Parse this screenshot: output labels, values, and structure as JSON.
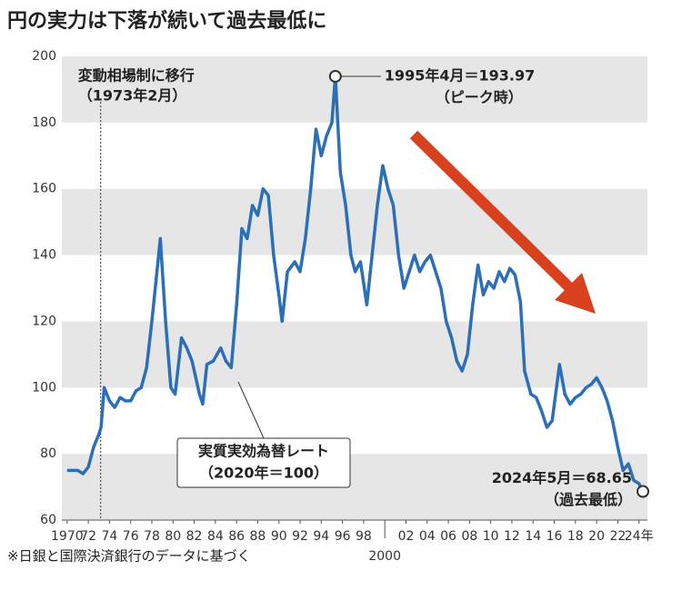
{
  "chart_data": {
    "type": "line",
    "title": "円の実力は下落が続いて過去最低に",
    "footnote": "※日銀と国際決済銀行のデータに基づく",
    "series": [
      {
        "name": "実質実効為替レート（2020年＝100）",
        "color": "#2a6fb8",
        "x": [
          1970,
          1971,
          1971.5,
          1972,
          1972.5,
          1973,
          1973.2,
          1973.5,
          1974,
          1974.5,
          1975,
          1975.5,
          1976,
          1976.5,
          1977,
          1977.5,
          1978,
          1978.8,
          1979.3,
          1979.8,
          1980.2,
          1980.8,
          1981.3,
          1981.8,
          1982.5,
          1982.8,
          1983.2,
          1983.8,
          1984.5,
          1985,
          1985.5,
          1986,
          1986.5,
          1987,
          1987.5,
          1988,
          1988.5,
          1989,
          1989.5,
          1990,
          1990.3,
          1990.8,
          1991.5,
          1992,
          1992.5,
          1993,
          1993.5,
          1994,
          1994.5,
          1995,
          1995.33,
          1995.8,
          1996.3,
          1996.8,
          1997.2,
          1997.7,
          1998.3,
          1998.8,
          1999.3,
          1999.8,
          2000.3,
          2000.8,
          2001.3,
          2001.8,
          2002.3,
          2002.8,
          2003.3,
          2003.8,
          2004.3,
          2004.8,
          2005.3,
          2005.8,
          2006.3,
          2006.8,
          2007.3,
          2007.8,
          2008.3,
          2008.8,
          2009.3,
          2009.8,
          2010.3,
          2010.8,
          2011.3,
          2011.8,
          2012.3,
          2012.8,
          2013.2,
          2013.8,
          2014.3,
          2014.8,
          2015.3,
          2015.8,
          2016.5,
          2017,
          2017.5,
          2018,
          2018.5,
          2019,
          2019.5,
          2020,
          2020.5,
          2021,
          2021.5,
          2022,
          2022.5,
          2023,
          2023.5,
          2024,
          2024.37
        ],
        "values": [
          75,
          75,
          74,
          76,
          82,
          86,
          88,
          100,
          96,
          94,
          97,
          96,
          96,
          99,
          100,
          106,
          120,
          145,
          120,
          100,
          98,
          115,
          112,
          108,
          98,
          95,
          107,
          108,
          112,
          108,
          106,
          125,
          148,
          145,
          155,
          152,
          160,
          158,
          140,
          128,
          120,
          135,
          138,
          135,
          145,
          160,
          178,
          170,
          176,
          180,
          193.97,
          165,
          155,
          140,
          135,
          138,
          125,
          140,
          155,
          167,
          160,
          155,
          140,
          130,
          135,
          140,
          135,
          138,
          140,
          135,
          130,
          120,
          115,
          108,
          105,
          110,
          125,
          137,
          128,
          132,
          130,
          135,
          132,
          136,
          134,
          126,
          105,
          98,
          97,
          93,
          88,
          90,
          107,
          98,
          95,
          97,
          98,
          100,
          101,
          103,
          100,
          96,
          90,
          82,
          75,
          77,
          72,
          71,
          68.65
        ]
      }
    ],
    "xlim": [
      1969.5,
      2024.8
    ],
    "ylim": [
      60,
      200
    ],
    "yticks": [
      60,
      80,
      100,
      120,
      140,
      160,
      180,
      200
    ],
    "xticks": [
      1970,
      {
        "value": 1972,
        "label": "72"
      },
      {
        "value": 1974,
        "label": "74"
      },
      {
        "value": 1976,
        "label": "76"
      },
      {
        "value": 1978,
        "label": "78"
      },
      {
        "value": 1980,
        "label": "80"
      },
      {
        "value": 1982,
        "label": "82"
      },
      {
        "value": 1984,
        "label": "84"
      },
      {
        "value": 1986,
        "label": "86"
      },
      {
        "value": 1988,
        "label": "88"
      },
      {
        "value": 1990,
        "label": "90"
      },
      {
        "value": 1992,
        "label": "92"
      },
      {
        "value": 1994,
        "label": "94"
      },
      {
        "value": 1996,
        "label": "96"
      },
      {
        "value": 1998,
        "label": "98"
      },
      {
        "value": 2002,
        "label": "02"
      },
      {
        "value": 2004,
        "label": "04"
      },
      {
        "value": 2006,
        "label": "06"
      },
      {
        "value": 2008,
        "label": "08"
      },
      {
        "value": 2010,
        "label": "10"
      },
      {
        "value": 2012,
        "label": "12"
      },
      {
        "value": 2014,
        "label": "14"
      },
      {
        "value": 2016,
        "label": "16"
      },
      {
        "value": 2018,
        "label": "18"
      },
      {
        "value": 2020,
        "label": "20"
      },
      {
        "value": 2022,
        "label": "22"
      },
      {
        "value": 2024,
        "label": "24年"
      }
    ],
    "xticks_secondary": [
      2000
    ],
    "grid": "bands",
    "series_label": [
      "実質実効為替レート",
      "（2020年＝100）"
    ],
    "reference_line": {
      "x": 1973.17,
      "lines": [
        "変動相場制に移行",
        "（1973年2月）"
      ]
    },
    "peak_annotation": [
      "1995年4月＝193.97",
      "（ピーク時）"
    ],
    "low_annotation": [
      "2024年5月＝68.65",
      "（過去最低）"
    ]
  }
}
